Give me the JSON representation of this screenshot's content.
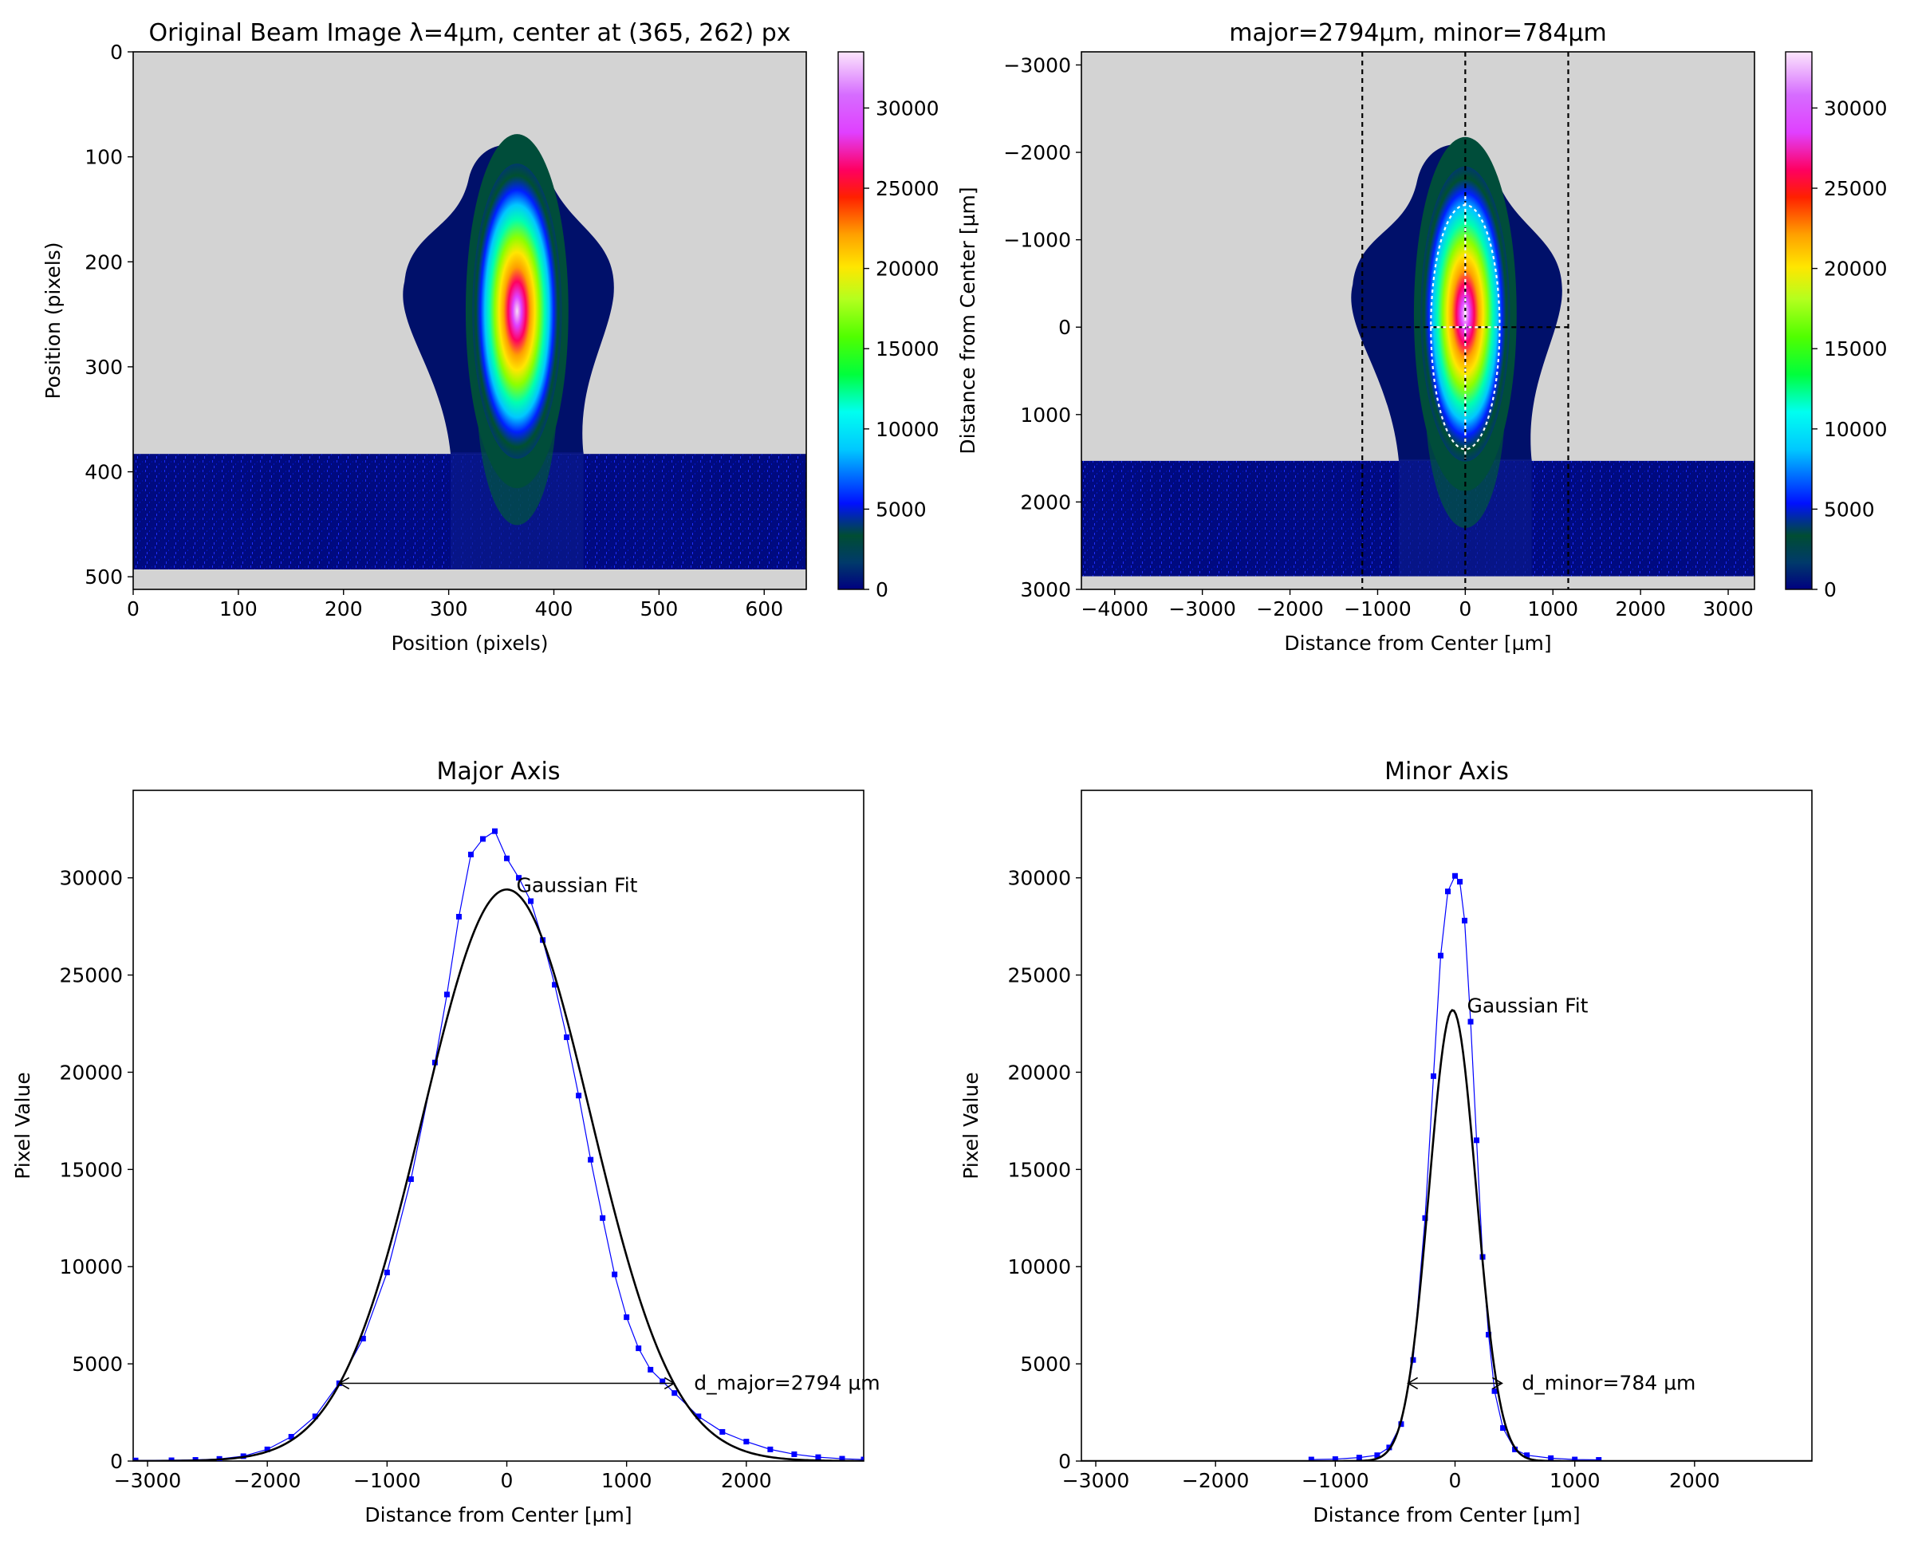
{
  "chart_data": [
    {
      "type": "heatmap",
      "title": "Original Beam Image λ=4µm, center at (365, 262) px",
      "xlabel": "Position (pixels)",
      "ylabel": "Position (pixels)",
      "xlim": [
        0,
        640
      ],
      "ylim": [
        512,
        0
      ],
      "xticks": [
        "0",
        "100",
        "200",
        "300",
        "400",
        "500",
        "600"
      ],
      "yticks": [
        "0",
        "100",
        "200",
        "300",
        "400",
        "500"
      ],
      "colorbar_ticks": [
        "0",
        "5000",
        "10000",
        "15000",
        "20000",
        "25000",
        "30000"
      ],
      "colorbar_range": [
        0,
        33500
      ],
      "colormap": "gist_ncar",
      "background_color": "#d3d3d3",
      "beam_center": [
        365,
        262
      ]
    },
    {
      "type": "heatmap",
      "title": "major=2794µm, minor=784µm",
      "xlabel": "Distance from Center [µm]",
      "ylabel": "Distance from Center [µm]",
      "xlim": [
        -4380,
        3300
      ],
      "ylim": [
        3000,
        -3150
      ],
      "xticks": [
        "−4000",
        "−3000",
        "−2000",
        "−1000",
        "0",
        "1000",
        "2000",
        "3000"
      ],
      "yticks": [
        "−3000",
        "−2000",
        "−1000",
        "0",
        "1000",
        "2000",
        "3000"
      ],
      "colorbar_ticks": [
        "0",
        "5000",
        "10000",
        "15000",
        "20000",
        "25000",
        "30000"
      ],
      "colorbar_range": [
        0,
        33500
      ],
      "ellipse": {
        "major_um": 2794,
        "minor_um": 784
      },
      "integration_box_um": {
        "x": [
          -1175,
          1175
        ],
        "y_dashed_center": 0
      }
    },
    {
      "type": "line",
      "title": "Major Axis",
      "xlabel": "Distance from Center [µm]",
      "ylabel": "Pixel Value",
      "xlim": [
        -3120,
        2980
      ],
      "ylim": [
        0,
        34500
      ],
      "xticks": [
        "−3000",
        "−2000",
        "−1000",
        "0",
        "1000",
        "2000"
      ],
      "yticks": [
        "0",
        "5000",
        "10000",
        "15000",
        "20000",
        "25000",
        "30000"
      ],
      "fit": {
        "label": "Gaussian Fit",
        "amplitude": 29400,
        "center": 0,
        "diameter": 2794
      },
      "measured_profile": [
        [
          -3100,
          30
        ],
        [
          -2800,
          40
        ],
        [
          -2600,
          60
        ],
        [
          -2400,
          110
        ],
        [
          -2200,
          250
        ],
        [
          -2000,
          600
        ],
        [
          -1800,
          1250
        ],
        [
          -1600,
          2300
        ],
        [
          -1400,
          4000
        ],
        [
          -1200,
          6300
        ],
        [
          -1000,
          9700
        ],
        [
          -800,
          14500
        ],
        [
          -600,
          20500
        ],
        [
          -500,
          24000
        ],
        [
          -400,
          28000
        ],
        [
          -300,
          31200
        ],
        [
          -200,
          32000
        ],
        [
          -100,
          32400
        ],
        [
          0,
          31000
        ],
        [
          100,
          30000
        ],
        [
          200,
          28800
        ],
        [
          300,
          26800
        ],
        [
          400,
          24500
        ],
        [
          500,
          21800
        ],
        [
          600,
          18800
        ],
        [
          700,
          15500
        ],
        [
          800,
          12500
        ],
        [
          900,
          9600
        ],
        [
          1000,
          7400
        ],
        [
          1100,
          5800
        ],
        [
          1200,
          4700
        ],
        [
          1300,
          4100
        ],
        [
          1400,
          3500
        ],
        [
          1600,
          2300
        ],
        [
          1800,
          1500
        ],
        [
          2000,
          1000
        ],
        [
          2200,
          600
        ],
        [
          2400,
          350
        ],
        [
          2600,
          200
        ],
        [
          2800,
          120
        ],
        [
          2980,
          80
        ]
      ],
      "annotation": {
        "text": "d_major=2794 µm",
        "level": 4000,
        "from": -1397,
        "to": 1397
      }
    },
    {
      "type": "line",
      "title": "Minor Axis",
      "xlabel": "Distance from Center [µm]",
      "ylabel": "Pixel Value",
      "xlim": [
        -3120,
        2980
      ],
      "ylim": [
        0,
        34500
      ],
      "xticks": [
        "−3000",
        "−2000",
        "−1000",
        "0",
        "1000",
        "2000"
      ],
      "yticks": [
        "0",
        "5000",
        "10000",
        "15000",
        "20000",
        "25000",
        "30000"
      ],
      "fit": {
        "label": "Gaussian Fit",
        "amplitude": 23200,
        "center": -20,
        "diameter": 784
      },
      "measured_profile": [
        [
          -1200,
          80
        ],
        [
          -1000,
          100
        ],
        [
          -800,
          180
        ],
        [
          -650,
          300
        ],
        [
          -550,
          700
        ],
        [
          -450,
          1900
        ],
        [
          -350,
          5200
        ],
        [
          -250,
          12500
        ],
        [
          -180,
          19800
        ],
        [
          -120,
          26000
        ],
        [
          -60,
          29300
        ],
        [
          0,
          30100
        ],
        [
          40,
          29800
        ],
        [
          80,
          27800
        ],
        [
          130,
          22600
        ],
        [
          180,
          16500
        ],
        [
          230,
          10500
        ],
        [
          280,
          6500
        ],
        [
          330,
          3600
        ],
        [
          400,
          1700
        ],
        [
          500,
          600
        ],
        [
          600,
          300
        ],
        [
          800,
          150
        ],
        [
          1000,
          80
        ],
        [
          1200,
          60
        ]
      ],
      "annotation": {
        "text": "d_minor=784 µm",
        "level": 4000,
        "from": -392,
        "to": 392
      }
    }
  ]
}
